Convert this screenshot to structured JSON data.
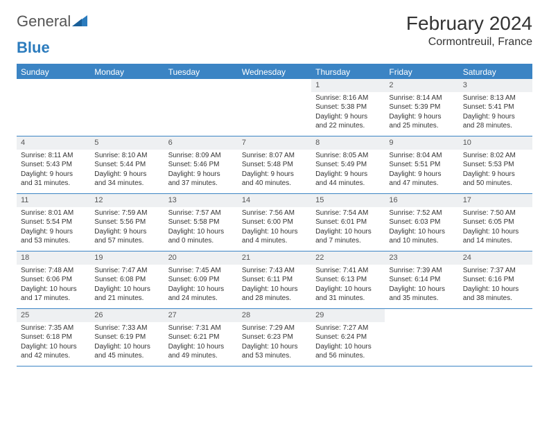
{
  "brand": {
    "part1": "General",
    "part2": "Blue"
  },
  "title": "February 2024",
  "location": "Cormontreuil, France",
  "colors": {
    "header_bar": "#3b84c4",
    "daynum_bg": "#eef0f2",
    "text": "#333333",
    "logo_blue": "#2b7bbd"
  },
  "dow": [
    "Sunday",
    "Monday",
    "Tuesday",
    "Wednesday",
    "Thursday",
    "Friday",
    "Saturday"
  ],
  "weeks": [
    [
      {
        "n": "",
        "sr": "",
        "ss": "",
        "dl": ""
      },
      {
        "n": "",
        "sr": "",
        "ss": "",
        "dl": ""
      },
      {
        "n": "",
        "sr": "",
        "ss": "",
        "dl": ""
      },
      {
        "n": "",
        "sr": "",
        "ss": "",
        "dl": ""
      },
      {
        "n": "1",
        "sr": "Sunrise: 8:16 AM",
        "ss": "Sunset: 5:38 PM",
        "dl": "Daylight: 9 hours and 22 minutes."
      },
      {
        "n": "2",
        "sr": "Sunrise: 8:14 AM",
        "ss": "Sunset: 5:39 PM",
        "dl": "Daylight: 9 hours and 25 minutes."
      },
      {
        "n": "3",
        "sr": "Sunrise: 8:13 AM",
        "ss": "Sunset: 5:41 PM",
        "dl": "Daylight: 9 hours and 28 minutes."
      }
    ],
    [
      {
        "n": "4",
        "sr": "Sunrise: 8:11 AM",
        "ss": "Sunset: 5:43 PM",
        "dl": "Daylight: 9 hours and 31 minutes."
      },
      {
        "n": "5",
        "sr": "Sunrise: 8:10 AM",
        "ss": "Sunset: 5:44 PM",
        "dl": "Daylight: 9 hours and 34 minutes."
      },
      {
        "n": "6",
        "sr": "Sunrise: 8:09 AM",
        "ss": "Sunset: 5:46 PM",
        "dl": "Daylight: 9 hours and 37 minutes."
      },
      {
        "n": "7",
        "sr": "Sunrise: 8:07 AM",
        "ss": "Sunset: 5:48 PM",
        "dl": "Daylight: 9 hours and 40 minutes."
      },
      {
        "n": "8",
        "sr": "Sunrise: 8:05 AM",
        "ss": "Sunset: 5:49 PM",
        "dl": "Daylight: 9 hours and 44 minutes."
      },
      {
        "n": "9",
        "sr": "Sunrise: 8:04 AM",
        "ss": "Sunset: 5:51 PM",
        "dl": "Daylight: 9 hours and 47 minutes."
      },
      {
        "n": "10",
        "sr": "Sunrise: 8:02 AM",
        "ss": "Sunset: 5:53 PM",
        "dl": "Daylight: 9 hours and 50 minutes."
      }
    ],
    [
      {
        "n": "11",
        "sr": "Sunrise: 8:01 AM",
        "ss": "Sunset: 5:54 PM",
        "dl": "Daylight: 9 hours and 53 minutes."
      },
      {
        "n": "12",
        "sr": "Sunrise: 7:59 AM",
        "ss": "Sunset: 5:56 PM",
        "dl": "Daylight: 9 hours and 57 minutes."
      },
      {
        "n": "13",
        "sr": "Sunrise: 7:57 AM",
        "ss": "Sunset: 5:58 PM",
        "dl": "Daylight: 10 hours and 0 minutes."
      },
      {
        "n": "14",
        "sr": "Sunrise: 7:56 AM",
        "ss": "Sunset: 6:00 PM",
        "dl": "Daylight: 10 hours and 4 minutes."
      },
      {
        "n": "15",
        "sr": "Sunrise: 7:54 AM",
        "ss": "Sunset: 6:01 PM",
        "dl": "Daylight: 10 hours and 7 minutes."
      },
      {
        "n": "16",
        "sr": "Sunrise: 7:52 AM",
        "ss": "Sunset: 6:03 PM",
        "dl": "Daylight: 10 hours and 10 minutes."
      },
      {
        "n": "17",
        "sr": "Sunrise: 7:50 AM",
        "ss": "Sunset: 6:05 PM",
        "dl": "Daylight: 10 hours and 14 minutes."
      }
    ],
    [
      {
        "n": "18",
        "sr": "Sunrise: 7:48 AM",
        "ss": "Sunset: 6:06 PM",
        "dl": "Daylight: 10 hours and 17 minutes."
      },
      {
        "n": "19",
        "sr": "Sunrise: 7:47 AM",
        "ss": "Sunset: 6:08 PM",
        "dl": "Daylight: 10 hours and 21 minutes."
      },
      {
        "n": "20",
        "sr": "Sunrise: 7:45 AM",
        "ss": "Sunset: 6:09 PM",
        "dl": "Daylight: 10 hours and 24 minutes."
      },
      {
        "n": "21",
        "sr": "Sunrise: 7:43 AM",
        "ss": "Sunset: 6:11 PM",
        "dl": "Daylight: 10 hours and 28 minutes."
      },
      {
        "n": "22",
        "sr": "Sunrise: 7:41 AM",
        "ss": "Sunset: 6:13 PM",
        "dl": "Daylight: 10 hours and 31 minutes."
      },
      {
        "n": "23",
        "sr": "Sunrise: 7:39 AM",
        "ss": "Sunset: 6:14 PM",
        "dl": "Daylight: 10 hours and 35 minutes."
      },
      {
        "n": "24",
        "sr": "Sunrise: 7:37 AM",
        "ss": "Sunset: 6:16 PM",
        "dl": "Daylight: 10 hours and 38 minutes."
      }
    ],
    [
      {
        "n": "25",
        "sr": "Sunrise: 7:35 AM",
        "ss": "Sunset: 6:18 PM",
        "dl": "Daylight: 10 hours and 42 minutes."
      },
      {
        "n": "26",
        "sr": "Sunrise: 7:33 AM",
        "ss": "Sunset: 6:19 PM",
        "dl": "Daylight: 10 hours and 45 minutes."
      },
      {
        "n": "27",
        "sr": "Sunrise: 7:31 AM",
        "ss": "Sunset: 6:21 PM",
        "dl": "Daylight: 10 hours and 49 minutes."
      },
      {
        "n": "28",
        "sr": "Sunrise: 7:29 AM",
        "ss": "Sunset: 6:23 PM",
        "dl": "Daylight: 10 hours and 53 minutes."
      },
      {
        "n": "29",
        "sr": "Sunrise: 7:27 AM",
        "ss": "Sunset: 6:24 PM",
        "dl": "Daylight: 10 hours and 56 minutes."
      },
      {
        "n": "",
        "sr": "",
        "ss": "",
        "dl": ""
      },
      {
        "n": "",
        "sr": "",
        "ss": "",
        "dl": ""
      }
    ]
  ]
}
